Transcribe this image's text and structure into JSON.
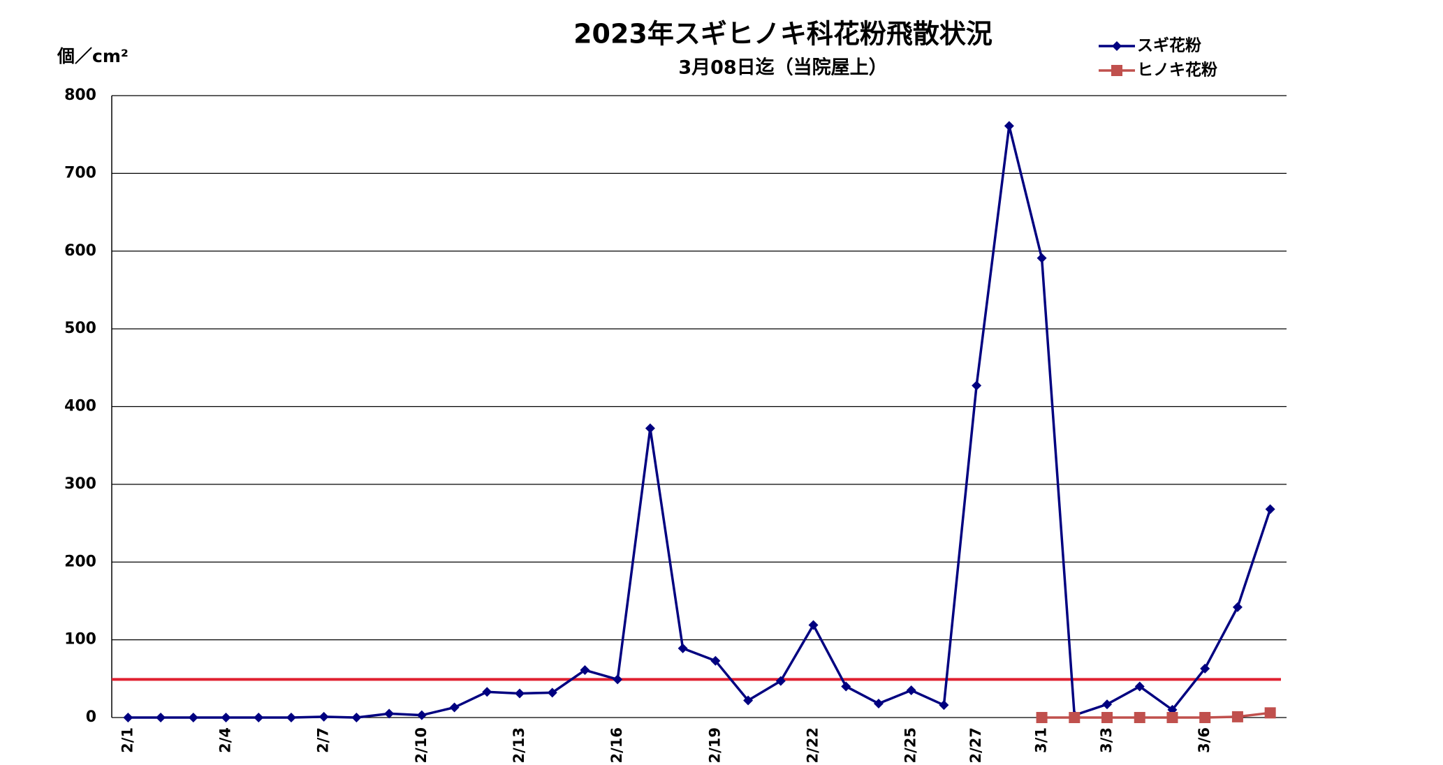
{
  "chart_data": {
    "type": "line",
    "title": "2023年スギヒノキ科花粉飛散状況",
    "subtitle": "3月08日迄（当院屋上）",
    "y_label": "個／cm²",
    "categories": [
      "2/1",
      null,
      null,
      "2/4",
      null,
      null,
      "2/7",
      null,
      null,
      "2/10",
      null,
      null,
      "2/13",
      null,
      null,
      "2/16",
      null,
      null,
      "2/19",
      null,
      null,
      "2/22",
      null,
      null,
      "2/25",
      null,
      "2/27",
      null,
      "3/1",
      null,
      "3/3",
      null,
      null,
      "3/6",
      null,
      null
    ],
    "series": [
      {
        "name": "スギ花粉",
        "color": "#000080",
        "marker": "diamond",
        "values": [
          0,
          0,
          0,
          0,
          0,
          0,
          1,
          0,
          5,
          3,
          13,
          33,
          31,
          32,
          61,
          49,
          372,
          89,
          73,
          22,
          47,
          119,
          40,
          18,
          35,
          16,
          427,
          761,
          591,
          3,
          17,
          40,
          10,
          63,
          142,
          268
        ]
      },
      {
        "name": "ヒノキ花粉",
        "color": "#c0504d",
        "marker": "square",
        "values": [
          null,
          null,
          null,
          null,
          null,
          null,
          null,
          null,
          null,
          null,
          null,
          null,
          null,
          null,
          null,
          null,
          null,
          null,
          null,
          null,
          null,
          null,
          null,
          null,
          null,
          null,
          null,
          null,
          0,
          0,
          0,
          0,
          0,
          0,
          1,
          6
        ]
      }
    ],
    "reference_line": {
      "value": 49,
      "color": "#e02030"
    },
    "ylim": [
      0,
      800
    ],
    "yticks": [
      0,
      100,
      200,
      300,
      400,
      500,
      600,
      700,
      800
    ],
    "grid": true,
    "legend": "top-right"
  }
}
